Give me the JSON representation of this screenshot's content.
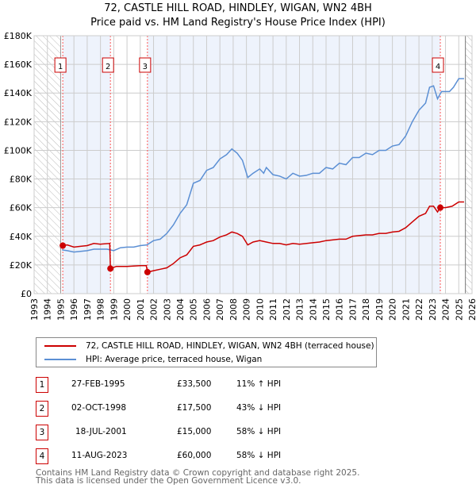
{
  "chart_data": {
    "type": "line",
    "title": "72, CASTLE HILL ROAD, HINDLEY, WIGAN, WN2 4BH",
    "subtitle": "Price paid vs. HM Land Registry's House Price Index (HPI)",
    "xlim": [
      1993,
      2026
    ],
    "ylim": [
      0,
      180000
    ],
    "x_ticks": [
      "1993",
      "1994",
      "1995",
      "1996",
      "1997",
      "1998",
      "1999",
      "2000",
      "2001",
      "2002",
      "2003",
      "2004",
      "2005",
      "2006",
      "2007",
      "2008",
      "2009",
      "2010",
      "2011",
      "2012",
      "2013",
      "2014",
      "2015",
      "2016",
      "2017",
      "2018",
      "2019",
      "2020",
      "2021",
      "2022",
      "2023",
      "2024",
      "2025",
      "2026"
    ],
    "y_ticks": [
      {
        "v": 0,
        "label": "£0"
      },
      {
        "v": 20000,
        "label": "£20K"
      },
      {
        "v": 40000,
        "label": "£40K"
      },
      {
        "v": 60000,
        "label": "£60K"
      },
      {
        "v": 80000,
        "label": "£80K"
      },
      {
        "v": 100000,
        "label": "£100K"
      },
      {
        "v": 120000,
        "label": "£120K"
      },
      {
        "v": 140000,
        "label": "£140K"
      },
      {
        "v": 160000,
        "label": "£160K"
      },
      {
        "v": 180000,
        "label": "£180K"
      }
    ],
    "grid": true,
    "colors": {
      "property": "#cc0000",
      "hpi": "#5b8fd4",
      "shade": "#eef3fc"
    },
    "series": [
      {
        "name": "72, CASTLE HILL ROAD, HINDLEY, WIGAN, WN2 4BH (terraced house)",
        "key": "property",
        "points": [
          [
            1995.15,
            33.5
          ],
          [
            1995.5,
            34
          ],
          [
            1996,
            32.5
          ],
          [
            1996.5,
            33
          ],
          [
            1997,
            33.5
          ],
          [
            1997.5,
            35
          ],
          [
            1998,
            34.5
          ],
          [
            1998.7,
            35
          ],
          [
            1998.75,
            17.5
          ],
          [
            1999.2,
            19
          ],
          [
            1999.5,
            19
          ],
          [
            2000,
            19
          ],
          [
            2001,
            19.5
          ],
          [
            2001.45,
            19.5
          ],
          [
            2001.55,
            15
          ],
          [
            2002,
            16
          ],
          [
            2002.5,
            17
          ],
          [
            2003,
            18
          ],
          [
            2003.5,
            21
          ],
          [
            2004,
            25
          ],
          [
            2004.5,
            27
          ],
          [
            2005,
            33
          ],
          [
            2005.5,
            34
          ],
          [
            2006,
            36
          ],
          [
            2006.5,
            37
          ],
          [
            2007,
            39.5
          ],
          [
            2007.5,
            41
          ],
          [
            2007.9,
            43
          ],
          [
            2008.3,
            42
          ],
          [
            2008.7,
            40
          ],
          [
            2009.1,
            34
          ],
          [
            2009.5,
            36
          ],
          [
            2010,
            37
          ],
          [
            2010.5,
            36
          ],
          [
            2011,
            35
          ],
          [
            2011.5,
            35
          ],
          [
            2012,
            34
          ],
          [
            2012.5,
            35
          ],
          [
            2013,
            34.5
          ],
          [
            2014,
            35.5
          ],
          [
            2014.5,
            36
          ],
          [
            2015,
            37
          ],
          [
            2016,
            38
          ],
          [
            2016.5,
            38
          ],
          [
            2017,
            40
          ],
          [
            2018,
            41
          ],
          [
            2018.5,
            41
          ],
          [
            2019,
            42
          ],
          [
            2019.5,
            42
          ],
          [
            2020,
            43
          ],
          [
            2020.5,
            43.5
          ],
          [
            2021,
            46
          ],
          [
            2021.5,
            50
          ],
          [
            2022,
            54
          ],
          [
            2022.5,
            56
          ],
          [
            2022.8,
            61
          ],
          [
            2023.1,
            61
          ],
          [
            2023.4,
            57
          ],
          [
            2023.6,
            60
          ],
          [
            2024,
            60
          ],
          [
            2024.5,
            61
          ],
          [
            2025,
            64
          ],
          [
            2025.4,
            64
          ]
        ]
      },
      {
        "name": "HPI: Average price, terraced house, Wigan",
        "key": "hpi",
        "points": [
          [
            1995.1,
            30.5
          ],
          [
            1995.5,
            30
          ],
          [
            1996,
            29
          ],
          [
            1996.5,
            29.5
          ],
          [
            1997,
            30
          ],
          [
            1997.5,
            31
          ],
          [
            1998,
            31
          ],
          [
            1998.5,
            31
          ],
          [
            1999,
            30
          ],
          [
            1999.5,
            32
          ],
          [
            2000,
            32.5
          ],
          [
            2000.5,
            32.5
          ],
          [
            2001,
            33.5
          ],
          [
            2001.5,
            34
          ],
          [
            2002,
            37
          ],
          [
            2002.5,
            38
          ],
          [
            2003,
            42
          ],
          [
            2003.5,
            48
          ],
          [
            2004,
            56
          ],
          [
            2004.5,
            62
          ],
          [
            2005,
            77
          ],
          [
            2005.5,
            79
          ],
          [
            2006,
            86
          ],
          [
            2006.5,
            88
          ],
          [
            2007,
            94
          ],
          [
            2007.5,
            97
          ],
          [
            2007.9,
            101
          ],
          [
            2008.3,
            98
          ],
          [
            2008.7,
            93
          ],
          [
            2009.1,
            81
          ],
          [
            2009.5,
            84
          ],
          [
            2010,
            87
          ],
          [
            2010.3,
            84
          ],
          [
            2010.5,
            88
          ],
          [
            2011,
            83
          ],
          [
            2011.5,
            82
          ],
          [
            2012,
            80
          ],
          [
            2012.5,
            84
          ],
          [
            2013,
            82
          ],
          [
            2013.5,
            82.5
          ],
          [
            2014,
            84
          ],
          [
            2014.5,
            84
          ],
          [
            2015,
            88
          ],
          [
            2015.5,
            87
          ],
          [
            2016,
            91
          ],
          [
            2016.5,
            90
          ],
          [
            2017,
            95
          ],
          [
            2017.5,
            95
          ],
          [
            2018,
            98
          ],
          [
            2018.5,
            97
          ],
          [
            2019,
            100
          ],
          [
            2019.5,
            100
          ],
          [
            2020,
            103
          ],
          [
            2020.5,
            104
          ],
          [
            2021,
            110
          ],
          [
            2021.5,
            120
          ],
          [
            2022,
            128
          ],
          [
            2022.5,
            133
          ],
          [
            2022.8,
            144
          ],
          [
            2023.1,
            145
          ],
          [
            2023.4,
            136
          ],
          [
            2023.7,
            141
          ],
          [
            2024.3,
            141
          ],
          [
            2024.6,
            144
          ],
          [
            2025,
            150
          ],
          [
            2025.4,
            150
          ]
        ]
      }
    ],
    "sales": [
      {
        "n": "1",
        "x": 1995.16,
        "price": 33500,
        "date": "27-FEB-1995",
        "price_label": "£33,500",
        "rel": "11% ↑ HPI"
      },
      {
        "n": "2",
        "x": 1998.75,
        "price": 17500,
        "date": "02-OCT-1998",
        "price_label": "£17,500",
        "rel": "43% ↓ HPI"
      },
      {
        "n": "3",
        "x": 2001.54,
        "price": 15000,
        "date": "18-JUL-2001",
        "price_label": "£15,000",
        "rel": "58% ↓ HPI"
      },
      {
        "n": "4",
        "x": 2023.61,
        "price": 60000,
        "date": "11-AUG-2023",
        "price_label": "£60,000",
        "rel": "58% ↓ HPI"
      }
    ],
    "shaded": [
      [
        1995.16,
        1998.75
      ],
      [
        2001.54,
        2023.61
      ]
    ],
    "hatched": [
      [
        1993,
        1995
      ],
      [
        2025.5,
        2026
      ]
    ]
  },
  "footer": {
    "line1": "Contains HM Land Registry data © Crown copyright and database right 2025.",
    "line2": "This data is licensed under the Open Government Licence v3.0."
  }
}
